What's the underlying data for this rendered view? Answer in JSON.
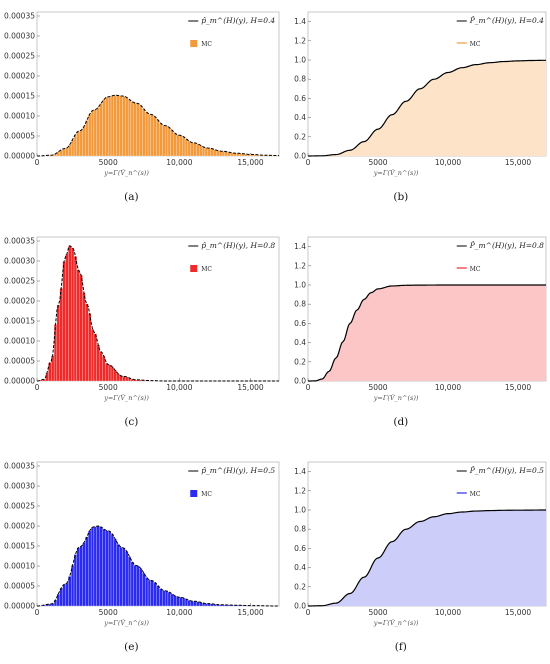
{
  "chart_data": [
    {
      "id": "a",
      "type": "bar",
      "kind": "pdf",
      "caption": "(a)",
      "xlabel": "y=Γ(V̂_n^(s))",
      "legend": {
        "curve": "p̂_m^(H)(y), H=0.4",
        "mc": "MC"
      },
      "color": "#f39a3c",
      "line_color": "#000000",
      "stroke_color": "#ffffff",
      "xlim": [
        0,
        17000
      ],
      "ylim": [
        0,
        0.00036
      ],
      "xticks": [
        "0",
        "5000",
        "10,000",
        "15,000"
      ],
      "yticks": [
        "0.00000",
        "0.00005",
        "0.00010",
        "0.00015",
        "0.00020",
        "0.00025",
        "0.00030",
        "0.00035"
      ],
      "x": [
        0,
        1000,
        2000,
        3000,
        4000,
        5000,
        5500,
        6000,
        7000,
        8000,
        9000,
        10000,
        11000,
        12000,
        13000,
        14000,
        15000,
        16000,
        17000
      ],
      "y": [
        0.0,
        2e-06,
        1.9e-05,
        6.3e-05,
        0.000115,
        0.000148,
        0.000152,
        0.00015,
        0.000132,
        0.000104,
        7.6e-05,
        5.2e-05,
        3.3e-05,
        2e-05,
        1.2e-05,
        7e-06,
        4e-06,
        2e-06,
        1e-06
      ]
    },
    {
      "id": "b",
      "type": "area",
      "kind": "cdf",
      "caption": "(b)",
      "xlabel": "y=Γ(V̂_n^(s))",
      "legend": {
        "curve": "P̂_m^(H)(y), H=0.4",
        "mc": "MC"
      },
      "color": "#fde3c8",
      "mc_color": "#f39a3c",
      "line_color": "#000000",
      "xlim": [
        0,
        17000
      ],
      "ylim": [
        0,
        1.5
      ],
      "xticks": [
        "0",
        "5000",
        "10,000",
        "15,000"
      ],
      "yticks": [
        "0.0",
        "0.2",
        "0.4",
        "0.6",
        "0.8",
        "1.0",
        "1.2",
        "1.4"
      ],
      "x": [
        0,
        1000,
        2000,
        3000,
        4000,
        5000,
        6000,
        7000,
        8000,
        9000,
        10000,
        11000,
        12000,
        13000,
        14000,
        15000,
        16000,
        17000
      ],
      "y": [
        0.0,
        0.002,
        0.015,
        0.06,
        0.15,
        0.28,
        0.43,
        0.57,
        0.7,
        0.8,
        0.87,
        0.92,
        0.952,
        0.972,
        0.984,
        0.991,
        0.995,
        0.997
      ]
    },
    {
      "id": "c",
      "type": "bar",
      "kind": "pdf",
      "caption": "(c)",
      "xlabel": "y=Γ(V̂_n^(s))",
      "legend": {
        "curve": "p̂_m^(H)(y), H=0.8",
        "mc": "MC"
      },
      "color": "#ee2a2a",
      "line_color": "#000000",
      "stroke_color": "#ffffff",
      "xlim": [
        0,
        17000
      ],
      "ylim": [
        0,
        0.00036
      ],
      "xticks": [
        "0",
        "5000",
        "10,000",
        "15,000"
      ],
      "yticks": [
        "0.00000",
        "0.00005",
        "0.00010",
        "0.00015",
        "0.00020",
        "0.00025",
        "0.00030",
        "0.00035"
      ],
      "x": [
        0,
        500,
        1000,
        1500,
        2000,
        2300,
        2500,
        3000,
        3500,
        4000,
        4500,
        5000,
        6000,
        7000,
        8000,
        9000,
        10000,
        12000,
        17000
      ],
      "y": [
        0.0,
        4e-06,
        5e-05,
        0.00019,
        0.00031,
        0.000338,
        0.000333,
        0.000272,
        0.000193,
        0.000123,
        7.3e-05,
        4.1e-05,
        1.2e-05,
        3e-06,
        1e-06,
        0.0,
        0.0,
        0.0,
        0.0
      ]
    },
    {
      "id": "d",
      "type": "area",
      "kind": "cdf",
      "caption": "(d)",
      "xlabel": "y=Γ(V̂_n^(s))",
      "legend": {
        "curve": "P̂_m^(H)(y), H=0.8",
        "mc": "MC"
      },
      "color": "#fcc6c6",
      "mc_color": "#ee2a2a",
      "line_color": "#000000",
      "xlim": [
        0,
        17000
      ],
      "ylim": [
        0,
        1.5
      ],
      "xticks": [
        "0",
        "5000",
        "10,000",
        "15,000"
      ],
      "yticks": [
        "0.0",
        "0.2",
        "0.4",
        "0.6",
        "0.8",
        "1.0",
        "1.2",
        "1.4"
      ],
      "x": [
        0,
        500,
        1000,
        1500,
        2000,
        2500,
        3000,
        3500,
        4000,
        4500,
        5000,
        6000,
        7000,
        8000,
        10000,
        17000
      ],
      "y": [
        0.0,
        0.001,
        0.02,
        0.1,
        0.24,
        0.41,
        0.6,
        0.74,
        0.85,
        0.92,
        0.96,
        0.99,
        0.997,
        0.999,
        1.0,
        1.0
      ]
    },
    {
      "id": "e",
      "type": "bar",
      "kind": "pdf",
      "caption": "(e)",
      "xlabel": "y=Γ(V̂_n^(s))",
      "legend": {
        "curve": "p̂_m^(H)(y), H=0.5",
        "mc": "MC"
      },
      "color": "#2b2bf0",
      "line_color": "#000000",
      "stroke_color": "#ffffff",
      "xlim": [
        0,
        17000
      ],
      "ylim": [
        0,
        0.00036
      ],
      "xticks": [
        "0",
        "5000",
        "10,000",
        "15,000"
      ],
      "yticks": [
        "0.00000",
        "0.00005",
        "0.00010",
        "0.00015",
        "0.00020",
        "0.00025",
        "0.00030",
        "0.00035"
      ],
      "x": [
        0,
        1000,
        2000,
        3000,
        4000,
        4300,
        5000,
        6000,
        7000,
        8000,
        9000,
        10000,
        11000,
        12000,
        13000,
        14000,
        15000,
        17000
      ],
      "y": [
        0.0,
        5e-06,
        5.5e-05,
        0.000148,
        0.000198,
        0.0002,
        0.000188,
        0.000146,
        0.000101,
        6.4e-05,
        3.8e-05,
        2.2e-05,
        1.2e-05,
        6e-06,
        3e-06,
        2e-06,
        1e-06,
        0.0
      ]
    },
    {
      "id": "f",
      "type": "area",
      "kind": "cdf",
      "caption": "(f)",
      "xlabel": "y=Γ(V̂_n^(s))",
      "legend": {
        "curve": "P̂_m^(H)(y), H=0.5",
        "mc": "MC"
      },
      "color": "#cccdf8",
      "mc_color": "#2b2bf0",
      "line_color": "#000000",
      "xlim": [
        0,
        17000
      ],
      "ylim": [
        0,
        1.5
      ],
      "xticks": [
        "0",
        "5000",
        "10,000",
        "15,000"
      ],
      "yticks": [
        "0.0",
        "0.2",
        "0.4",
        "0.6",
        "0.8",
        "1.0",
        "1.2",
        "1.4"
      ],
      "x": [
        0,
        1000,
        2000,
        3000,
        4000,
        5000,
        6000,
        7000,
        8000,
        9000,
        10000,
        11000,
        12000,
        13000,
        14000,
        15000,
        17000
      ],
      "y": [
        0.0,
        0.003,
        0.03,
        0.13,
        0.3,
        0.5,
        0.67,
        0.8,
        0.88,
        0.93,
        0.962,
        0.979,
        0.989,
        0.994,
        0.997,
        0.998,
        1.0
      ]
    }
  ]
}
